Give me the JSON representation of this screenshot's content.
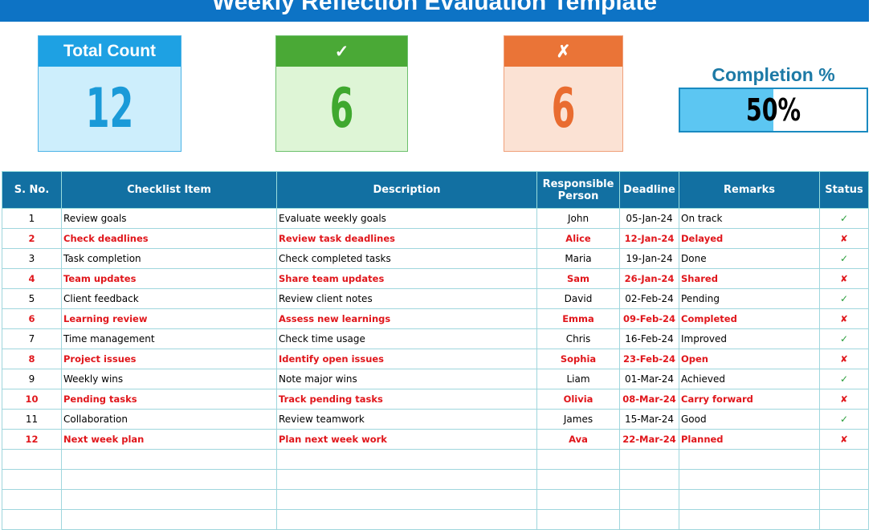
{
  "header": {
    "title": "Weekly Reflection Evaluation Template"
  },
  "cards": [
    {
      "title": "Total Count",
      "value": 12
    },
    {
      "title": "✓",
      "value": 6
    },
    {
      "title": "✗",
      "value": 6
    }
  ],
  "completion": {
    "label": "Completion %",
    "value": 50,
    "value_label": "50%"
  },
  "table": {
    "columns": [
      "S. No.",
      "Checklist Item",
      "Description",
      "Responsible Person",
      "Deadline",
      "Remarks",
      "Status"
    ],
    "rows": [
      [
        1,
        "Review goals",
        "Evaluate weekly goals",
        "John",
        "05-Jan-24",
        "On track",
        "✓"
      ],
      [
        2,
        "Check deadlines",
        "Review task deadlines",
        "Alice",
        "12-Jan-24",
        "Delayed",
        "✘"
      ],
      [
        3,
        "Task completion",
        "Check completed tasks",
        "Maria",
        "19-Jan-24",
        "Done",
        "✓"
      ],
      [
        4,
        "Team updates",
        "Share team updates",
        "Sam",
        "26-Jan-24",
        "Shared",
        "✘"
      ],
      [
        5,
        "Client feedback",
        "Review client notes",
        "David",
        "02-Feb-24",
        "Pending",
        "✓"
      ],
      [
        6,
        "Learning review",
        "Assess new learnings",
        "Emma",
        "09-Feb-24",
        "Completed",
        "✘"
      ],
      [
        7,
        "Time management",
        "Check time usage",
        "Chris",
        "16-Feb-24",
        "Improved",
        "✓"
      ],
      [
        8,
        "Project issues",
        "Identify open issues",
        "Sophia",
        "23-Feb-24",
        "Open",
        "✘"
      ],
      [
        9,
        "Weekly wins",
        "Note major wins",
        "Liam",
        "01-Mar-24",
        "Achieved",
        "✓"
      ],
      [
        10,
        "Pending tasks",
        "Track pending tasks",
        "Olivia",
        "08-Mar-24",
        "Carry forward",
        "✘"
      ],
      [
        11,
        "Collaboration",
        "Review teamwork",
        "James",
        "15-Mar-24",
        "Good",
        "✓"
      ],
      [
        12,
        "Next week plan",
        "Plan next week work",
        "Ava",
        "22-Mar-24",
        "Planned",
        "✘"
      ]
    ]
  }
}
